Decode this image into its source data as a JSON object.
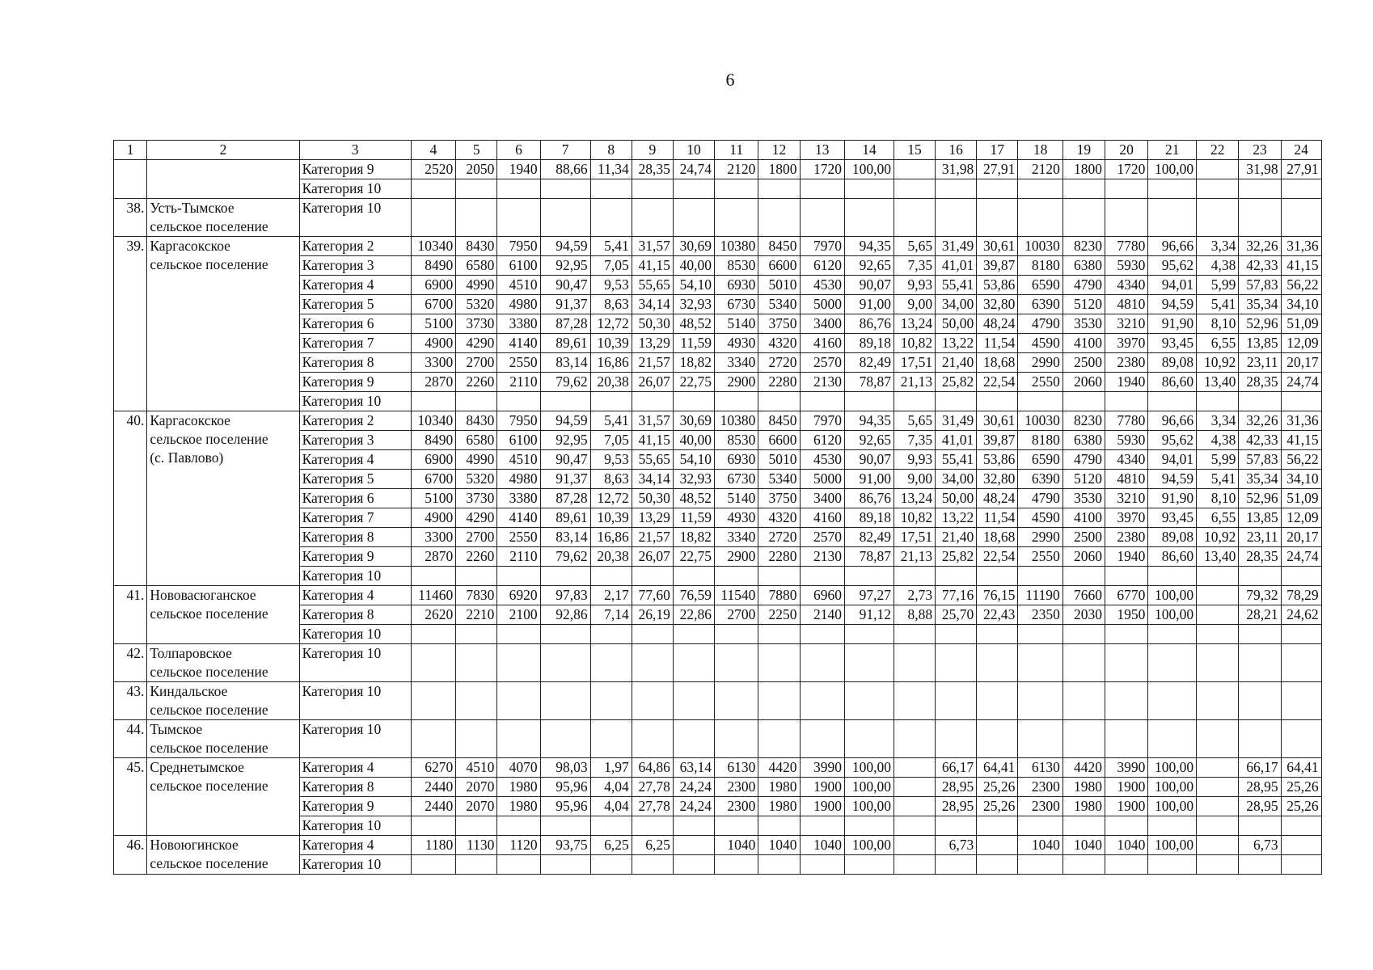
{
  "page_number": "6",
  "header": [
    "1",
    "2",
    "3",
    "4",
    "5",
    "6",
    "7",
    "8",
    "9",
    "10",
    "11",
    "12",
    "13",
    "14",
    "15",
    "16",
    "17",
    "18",
    "19",
    "20",
    "21",
    "22",
    "23",
    "24"
  ],
  "groups": [
    {
      "rows": [
        [
          "Категория 9",
          "2520",
          "2050",
          "1940",
          "88,66",
          "11,34",
          "28,35",
          "24,74",
          "2120",
          "1800",
          "1720",
          "100,00",
          null,
          "31,98",
          "27,91",
          "2120",
          "1800",
          "1720",
          "100,00",
          null,
          "31,98",
          "27,91"
        ],
        [
          "Категория 10"
        ]
      ]
    },
    {
      "num": "38.",
      "name": "Усть-Тымское\nсельское поселение",
      "rows": [
        [
          "Категория 10"
        ]
      ]
    },
    {
      "num": "39.",
      "name": "Каргасокское\nсельское поселение",
      "rows": [
        [
          "Категория 2",
          "10340",
          "8430",
          "7950",
          "94,59",
          "5,41",
          "31,57",
          "30,69",
          "10380",
          "8450",
          "7970",
          "94,35",
          "5,65",
          "31,49",
          "30,61",
          "10030",
          "8230",
          "7780",
          "96,66",
          "3,34",
          "32,26",
          "31,36"
        ],
        [
          "Категория 3",
          "8490",
          "6580",
          "6100",
          "92,95",
          "7,05",
          "41,15",
          "40,00",
          "8530",
          "6600",
          "6120",
          "92,65",
          "7,35",
          "41,01",
          "39,87",
          "8180",
          "6380",
          "5930",
          "95,62",
          "4,38",
          "42,33",
          "41,15"
        ],
        [
          "Категория 4",
          "6900",
          "4990",
          "4510",
          "90,47",
          "9,53",
          "55,65",
          "54,10",
          "6930",
          "5010",
          "4530",
          "90,07",
          "9,93",
          "55,41",
          "53,86",
          "6590",
          "4790",
          "4340",
          "94,01",
          "5,99",
          "57,83",
          "56,22"
        ],
        [
          "Категория 5",
          "6700",
          "5320",
          "4980",
          "91,37",
          "8,63",
          "34,14",
          "32,93",
          "6730",
          "5340",
          "5000",
          "91,00",
          "9,00",
          "34,00",
          "32,80",
          "6390",
          "5120",
          "4810",
          "94,59",
          "5,41",
          "35,34",
          "34,10"
        ],
        [
          "Категория 6",
          "5100",
          "3730",
          "3380",
          "87,28",
          "12,72",
          "50,30",
          "48,52",
          "5140",
          "3750",
          "3400",
          "86,76",
          "13,24",
          "50,00",
          "48,24",
          "4790",
          "3530",
          "3210",
          "91,90",
          "8,10",
          "52,96",
          "51,09"
        ],
        [
          "Категория 7",
          "4900",
          "4290",
          "4140",
          "89,61",
          "10,39",
          "13,29",
          "11,59",
          "4930",
          "4320",
          "4160",
          "89,18",
          "10,82",
          "13,22",
          "11,54",
          "4590",
          "4100",
          "3970",
          "93,45",
          "6,55",
          "13,85",
          "12,09"
        ],
        [
          "Категория 8",
          "3300",
          "2700",
          "2550",
          "83,14",
          "16,86",
          "21,57",
          "18,82",
          "3340",
          "2720",
          "2570",
          "82,49",
          "17,51",
          "21,40",
          "18,68",
          "2990",
          "2500",
          "2380",
          "89,08",
          "10,92",
          "23,11",
          "20,17"
        ],
        [
          "Категория 9",
          "2870",
          "2260",
          "2110",
          "79,62",
          "20,38",
          "26,07",
          "22,75",
          "2900",
          "2280",
          "2130",
          "78,87",
          "21,13",
          "25,82",
          "22,54",
          "2550",
          "2060",
          "1940",
          "86,60",
          "13,40",
          "28,35",
          "24,74"
        ],
        [
          "Категория 10"
        ]
      ]
    },
    {
      "num": "40.",
      "name": "Каргасокское\nсельское поселение\n(с. Павлово)",
      "rows": [
        [
          "Категория 2",
          "10340",
          "8430",
          "7950",
          "94,59",
          "5,41",
          "31,57",
          "30,69",
          "10380",
          "8450",
          "7970",
          "94,35",
          "5,65",
          "31,49",
          "30,61",
          "10030",
          "8230",
          "7780",
          "96,66",
          "3,34",
          "32,26",
          "31,36"
        ],
        [
          "Категория 3",
          "8490",
          "6580",
          "6100",
          "92,95",
          "7,05",
          "41,15",
          "40,00",
          "8530",
          "6600",
          "6120",
          "92,65",
          "7,35",
          "41,01",
          "39,87",
          "8180",
          "6380",
          "5930",
          "95,62",
          "4,38",
          "42,33",
          "41,15"
        ],
        [
          "Категория 4",
          "6900",
          "4990",
          "4510",
          "90,47",
          "9,53",
          "55,65",
          "54,10",
          "6930",
          "5010",
          "4530",
          "90,07",
          "9,93",
          "55,41",
          "53,86",
          "6590",
          "4790",
          "4340",
          "94,01",
          "5,99",
          "57,83",
          "56,22"
        ],
        [
          "Категория 5",
          "6700",
          "5320",
          "4980",
          "91,37",
          "8,63",
          "34,14",
          "32,93",
          "6730",
          "5340",
          "5000",
          "91,00",
          "9,00",
          "34,00",
          "32,80",
          "6390",
          "5120",
          "4810",
          "94,59",
          "5,41",
          "35,34",
          "34,10"
        ],
        [
          "Категория 6",
          "5100",
          "3730",
          "3380",
          "87,28",
          "12,72",
          "50,30",
          "48,52",
          "5140",
          "3750",
          "3400",
          "86,76",
          "13,24",
          "50,00",
          "48,24",
          "4790",
          "3530",
          "3210",
          "91,90",
          "8,10",
          "52,96",
          "51,09"
        ],
        [
          "Категория 7",
          "4900",
          "4290",
          "4140",
          "89,61",
          "10,39",
          "13,29",
          "11,59",
          "4930",
          "4320",
          "4160",
          "89,18",
          "10,82",
          "13,22",
          "11,54",
          "4590",
          "4100",
          "3970",
          "93,45",
          "6,55",
          "13,85",
          "12,09"
        ],
        [
          "Категория 8",
          "3300",
          "2700",
          "2550",
          "83,14",
          "16,86",
          "21,57",
          "18,82",
          "3340",
          "2720",
          "2570",
          "82,49",
          "17,51",
          "21,40",
          "18,68",
          "2990",
          "2500",
          "2380",
          "89,08",
          "10,92",
          "23,11",
          "20,17"
        ],
        [
          "Категория 9",
          "2870",
          "2260",
          "2110",
          "79,62",
          "20,38",
          "26,07",
          "22,75",
          "2900",
          "2280",
          "2130",
          "78,87",
          "21,13",
          "25,82",
          "22,54",
          "2550",
          "2060",
          "1940",
          "86,60",
          "13,40",
          "28,35",
          "24,74"
        ],
        [
          "Категория 10"
        ]
      ]
    },
    {
      "num": "41.",
      "name": "Нововасюганское\nсельское поселение",
      "rows": [
        [
          "Категория 4",
          "11460",
          "7830",
          "6920",
          "97,83",
          "2,17",
          "77,60",
          "76,59",
          "11540",
          "7880",
          "6960",
          "97,27",
          "2,73",
          "77,16",
          "76,15",
          "11190",
          "7660",
          "6770",
          "100,00",
          null,
          "79,32",
          "78,29"
        ],
        [
          "Категория 8",
          "2620",
          "2210",
          "2100",
          "92,86",
          "7,14",
          "26,19",
          "22,86",
          "2700",
          "2250",
          "2140",
          "91,12",
          "8,88",
          "25,70",
          "22,43",
          "2350",
          "2030",
          "1950",
          "100,00",
          null,
          "28,21",
          "24,62"
        ],
        [
          "Категория 10"
        ]
      ]
    },
    {
      "num": "42.",
      "name": "Толпаровское\nсельское поселение",
      "rows": [
        [
          "Категория 10"
        ]
      ]
    },
    {
      "num": "43.",
      "name": "Киндальское\nсельское поселение",
      "rows": [
        [
          "Категория 10"
        ]
      ]
    },
    {
      "num": "44.",
      "name": "Тымское\nсельское поселение",
      "rows": [
        [
          "Категория 10"
        ]
      ]
    },
    {
      "num": "45.",
      "name": "Среднетымское\nсельское поселение",
      "rows": [
        [
          "Категория 4",
          "6270",
          "4510",
          "4070",
          "98,03",
          "1,97",
          "64,86",
          "63,14",
          "6130",
          "4420",
          "3990",
          "100,00",
          null,
          "66,17",
          "64,41",
          "6130",
          "4420",
          "3990",
          "100,00",
          null,
          "66,17",
          "64,41"
        ],
        [
          "Категория 8",
          "2440",
          "2070",
          "1980",
          "95,96",
          "4,04",
          "27,78",
          "24,24",
          "2300",
          "1980",
          "1900",
          "100,00",
          null,
          "28,95",
          "25,26",
          "2300",
          "1980",
          "1900",
          "100,00",
          null,
          "28,95",
          "25,26"
        ],
        [
          "Категория 9",
          "2440",
          "2070",
          "1980",
          "95,96",
          "4,04",
          "27,78",
          "24,24",
          "2300",
          "1980",
          "1900",
          "100,00",
          null,
          "28,95",
          "25,26",
          "2300",
          "1980",
          "1900",
          "100,00",
          null,
          "28,95",
          "25,26"
        ],
        [
          "Категория 10"
        ]
      ]
    },
    {
      "num": "46.",
      "name": "Новоюгинское\nсельское поселение",
      "rows": [
        [
          "Категория 4",
          "1180",
          "1130",
          "1120",
          "93,75",
          "6,25",
          "6,25",
          null,
          "1040",
          "1040",
          "1040",
          "100,00",
          null,
          "6,73",
          null,
          "1040",
          "1040",
          "1040",
          "100,00",
          null,
          "6,73",
          null
        ],
        [
          "Категория 10"
        ]
      ]
    }
  ]
}
